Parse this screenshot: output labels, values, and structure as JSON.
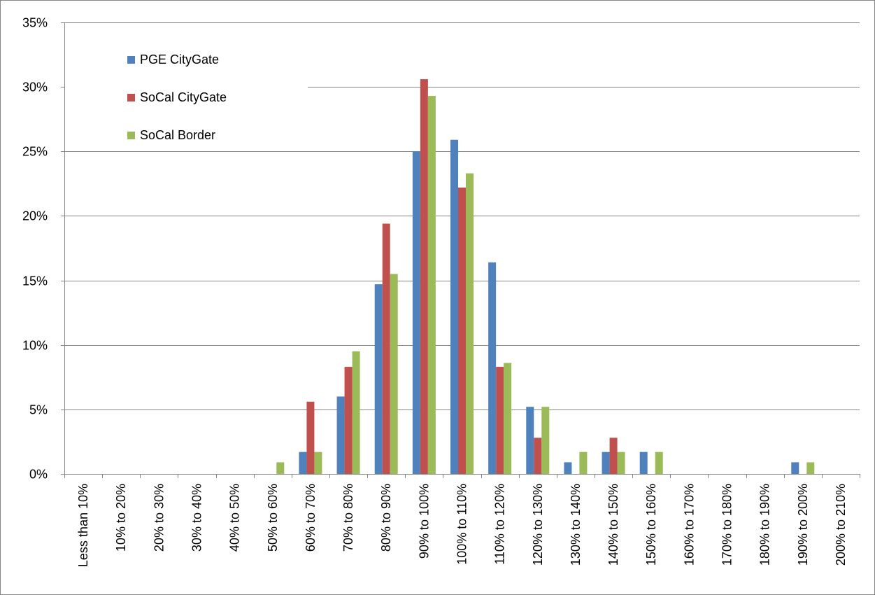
{
  "chart_data": {
    "type": "bar",
    "title": "",
    "xlabel": "",
    "ylabel": "",
    "ylim": [
      0,
      0.35
    ],
    "y_ticks": [
      0,
      0.05,
      0.1,
      0.15,
      0.2,
      0.25,
      0.3,
      0.35
    ],
    "y_tick_labels": [
      "0%",
      "5%",
      "10%",
      "15%",
      "20%",
      "25%",
      "30%",
      "35%"
    ],
    "grid": "horizontal",
    "legend_position": "top-left",
    "categories": [
      "Less than 10%",
      "10% to 20%",
      "20% to 30%",
      "30% to 40%",
      "40% to 50%",
      "50% to 60%",
      "60% to 70%",
      "70% to 80%",
      "80% to 90%",
      "90% to 100%",
      "100% to 110%",
      "110% to 120%",
      "120% to 130%",
      "130% to 140%",
      "140% to 150%",
      "150% to 160%",
      "160% to 170%",
      "170% to 180%",
      "180% to 190%",
      "190% to 200%",
      "200% to 210%"
    ],
    "series": [
      {
        "name": "PGE CityGate",
        "color": "#4F81BD",
        "values": [
          0,
          0,
          0,
          0,
          0,
          0,
          0.017,
          0.06,
          0.147,
          0.25,
          0.259,
          0.164,
          0.052,
          0.009,
          0.017,
          0.017,
          0,
          0,
          0,
          0.009,
          0
        ]
      },
      {
        "name": "SoCal CityGate",
        "color": "#C0504D",
        "values": [
          0,
          0,
          0,
          0,
          0,
          0,
          0.056,
          0.083,
          0.194,
          0.306,
          0.222,
          0.083,
          0.028,
          0,
          0.028,
          0,
          0,
          0,
          0,
          0,
          0
        ]
      },
      {
        "name": "SoCal Border",
        "color": "#9BBB59",
        "values": [
          0,
          0,
          0,
          0,
          0,
          0.009,
          0.017,
          0.095,
          0.155,
          0.293,
          0.233,
          0.086,
          0.052,
          0.017,
          0.017,
          0.017,
          0,
          0,
          0,
          0.009,
          0
        ]
      }
    ]
  },
  "colors": {
    "gridline": "#868686",
    "axis": "#868686",
    "background": "#FFFFFF"
  }
}
